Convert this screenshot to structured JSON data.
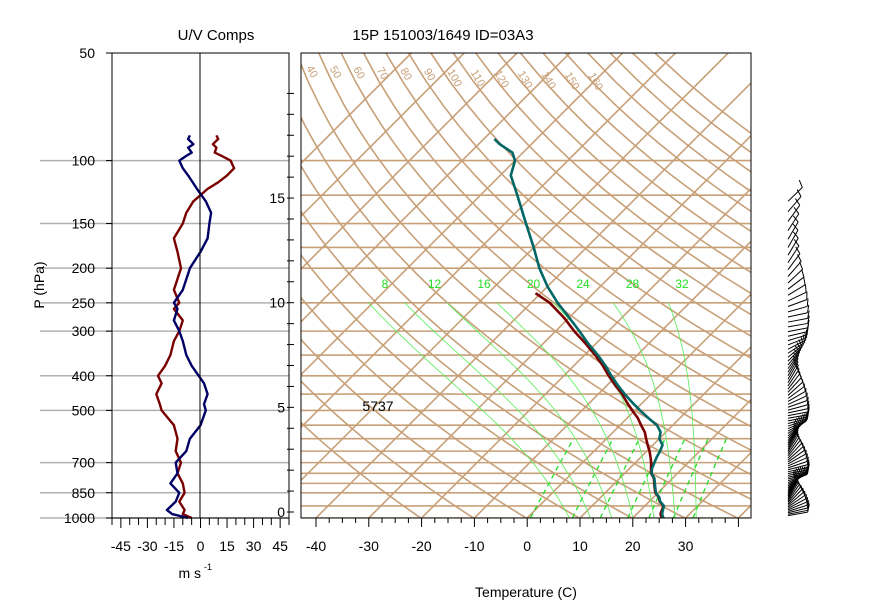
{
  "chart_data": [
    {
      "type": "line",
      "title": "U/V Comps",
      "xlabel": "m s",
      "xlabel_superscript": "-1",
      "ylabel": "P (hPa)",
      "yscale": "log",
      "ylim": [
        1000,
        50
      ],
      "xlim": [
        -50,
        50
      ],
      "x_ticks": [
        "-45",
        "-30",
        "-15",
        "0",
        "15",
        "30",
        "45"
      ],
      "x_tick_values": [
        -45,
        -30,
        -15,
        0,
        15,
        30,
        45
      ],
      "y_ticks": [
        "50",
        "100",
        "150",
        "200",
        "250",
        "300",
        "400",
        "500",
        "700",
        "850",
        "1000"
      ],
      "y_tick_values": [
        50,
        100,
        150,
        200,
        250,
        300,
        400,
        500,
        700,
        850,
        1000
      ],
      "grid": "horizontal at pressure ticks",
      "series": [
        {
          "color": "#7a0000",
          "points": [
            [
              -5,
              1000
            ],
            [
              -10,
              975
            ],
            [
              -9,
              950
            ],
            [
              -12,
              900
            ],
            [
              -9,
              850
            ],
            [
              -10,
              800
            ],
            [
              -13,
              750
            ],
            [
              -11,
              700
            ],
            [
              -14,
              650
            ],
            [
              -13,
              600
            ],
            [
              -15,
              550
            ],
            [
              -22,
              500
            ],
            [
              -23,
              480
            ],
            [
              -25,
              450
            ],
            [
              -22,
              420
            ],
            [
              -24,
              400
            ],
            [
              -20,
              375
            ],
            [
              -17,
              350
            ],
            [
              -15,
              320
            ],
            [
              -12,
              300
            ],
            [
              -10,
              280
            ],
            [
              -15,
              260
            ],
            [
              -12,
              250
            ],
            [
              -15,
              230
            ],
            [
              -11,
              200
            ],
            [
              -13,
              180
            ],
            [
              -15,
              165
            ],
            [
              -10,
              150
            ],
            [
              -8,
              140
            ],
            [
              -4,
              130
            ],
            [
              4,
              120
            ],
            [
              10,
              115
            ],
            [
              15,
              110
            ],
            [
              19,
              105
            ],
            [
              17,
              100
            ],
            [
              12,
              97
            ],
            [
              8,
              95
            ],
            [
              9,
              92
            ],
            [
              7,
              90
            ],
            [
              10,
              87
            ],
            [
              9,
              85
            ]
          ]
        },
        {
          "color": "#000066",
          "points": [
            [
              -7,
              1000
            ],
            [
              -16,
              975
            ],
            [
              -19,
              950
            ],
            [
              -14,
              900
            ],
            [
              -12,
              850
            ],
            [
              -17,
              800
            ],
            [
              -13,
              750
            ],
            [
              -14,
              700
            ],
            [
              -8,
              650
            ],
            [
              -6,
              600
            ],
            [
              0,
              550
            ],
            [
              3,
              500
            ],
            [
              2,
              480
            ],
            [
              4,
              450
            ],
            [
              2,
              420
            ],
            [
              -1,
              400
            ],
            [
              -5,
              375
            ],
            [
              -8,
              350
            ],
            [
              -10,
              320
            ],
            [
              -12,
              300
            ],
            [
              -15,
              280
            ],
            [
              -13,
              260
            ],
            [
              -15,
              250
            ],
            [
              -10,
              230
            ],
            [
              -6,
              200
            ],
            [
              0,
              180
            ],
            [
              4,
              165
            ],
            [
              5,
              150
            ],
            [
              6,
              140
            ],
            [
              3,
              130
            ],
            [
              -2,
              120
            ],
            [
              -7,
              110
            ],
            [
              -10,
              105
            ],
            [
              -12,
              100
            ],
            [
              -8,
              97
            ],
            [
              -5,
              95
            ],
            [
              -7,
              92
            ],
            [
              -4,
              90
            ],
            [
              -7,
              87
            ],
            [
              -6,
              85
            ]
          ]
        }
      ]
    },
    {
      "type": "line",
      "title": "15P 151003/1649 ID=03A3",
      "xlabel": "Temperature (C)",
      "ylabel": "",
      "x_ticks": [
        "-40",
        "-30",
        "-20",
        "-10",
        "0",
        "10",
        "20",
        "30"
      ],
      "x_tick_values": [
        -40,
        -30,
        -20,
        -10,
        0,
        10,
        20,
        30
      ],
      "height_axis_ticks": [
        "0",
        "5",
        "10",
        "15"
      ],
      "height_axis_values": [
        0,
        5,
        10,
        15
      ],
      "annotation": "5737",
      "annotation_pressure": 500,
      "isotherm_labels": [
        "40",
        "50",
        "60",
        "70",
        "80",
        "90",
        "100",
        "110",
        "120",
        "130",
        "140",
        "150",
        "160"
      ],
      "mixing_ratio_labels": [
        "8",
        "12",
        "16",
        "20",
        "24",
        "28",
        "32"
      ],
      "series": [
        {
          "name": "",
          "color": "#7a0000",
          "points": [
            [
              25.5,
              1000
            ],
            [
              24.5,
              975
            ],
            [
              24,
              950
            ],
            [
              23.5,
              925
            ],
            [
              22,
              900
            ],
            [
              21,
              875
            ],
            [
              19.5,
              850
            ],
            [
              18.5,
              825
            ],
            [
              17.5,
              800
            ],
            [
              16.5,
              775
            ],
            [
              15,
              750
            ],
            [
              14,
              725
            ],
            [
              13,
              700
            ],
            [
              11.8,
              675
            ],
            [
              10.5,
              650
            ],
            [
              9,
              625
            ],
            [
              7.5,
              600
            ],
            [
              6,
              575
            ],
            [
              4,
              550
            ],
            [
              2,
              525
            ],
            [
              -0.5,
              500
            ],
            [
              -3,
              475
            ],
            [
              -5.5,
              450
            ],
            [
              -8.5,
              425
            ],
            [
              -11.5,
              400
            ],
            [
              -14.5,
              375
            ],
            [
              -18,
              350
            ],
            [
              -22,
              325
            ],
            [
              -26.5,
              300
            ],
            [
              -31,
              275
            ],
            [
              -36.5,
              250
            ],
            [
              -41,
              235
            ]
          ]
        },
        {
          "name": "",
          "color": "#006666",
          "points": [
            [
              25.8,
              1000
            ],
            [
              24.8,
              975
            ],
            [
              24.2,
              950
            ],
            [
              23.6,
              925
            ],
            [
              22.1,
              900
            ],
            [
              21.1,
              875
            ],
            [
              19.6,
              850
            ],
            [
              18.6,
              825
            ],
            [
              17.6,
              800
            ],
            [
              16.6,
              775
            ],
            [
              15.1,
              750
            ],
            [
              14.2,
              725
            ],
            [
              13.6,
              700
            ],
            [
              13,
              675
            ],
            [
              12.5,
              650
            ],
            [
              11.8,
              625
            ],
            [
              10,
              600
            ],
            [
              9,
              575
            ],
            [
              7,
              550
            ],
            [
              4,
              525
            ],
            [
              1,
              500
            ],
            [
              -2,
              475
            ],
            [
              -5,
              450
            ],
            [
              -8,
              425
            ],
            [
              -11,
              400
            ],
            [
              -14,
              375
            ],
            [
              -17.5,
              350
            ],
            [
              -21.5,
              325
            ],
            [
              -25.5,
              300
            ],
            [
              -30,
              275
            ],
            [
              -35,
              250
            ],
            [
              -40,
              225
            ],
            [
              -45,
              200
            ],
            [
              -50,
              175
            ],
            [
              -56,
              150
            ],
            [
              -63,
              125
            ],
            [
              -68,
              110
            ],
            [
              -70,
              100
            ],
            [
              -72,
              95
            ],
            [
              -76,
              90
            ],
            [
              -78,
              87
            ]
          ]
        }
      ]
    }
  ]
}
